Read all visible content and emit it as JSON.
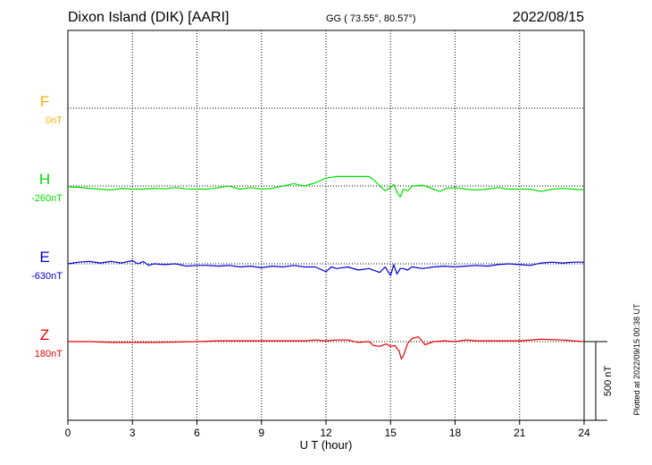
{
  "header": {
    "station": "Dixon Island (DIK)  [AARI]",
    "coords": "GG ( 73.55°,  80.57°)",
    "date": "2022/08/15"
  },
  "footer": {
    "plotted_note": "Plotted at 2022/09/15 00:38 UT",
    "scale_label": "500 nT"
  },
  "chart_data": {
    "type": "line",
    "title": "Dixon Island (DIK)  [AARI]",
    "xlabel": "U T (hour)",
    "xlim": [
      0,
      24
    ],
    "x_ticks": [
      "0",
      "3",
      "6",
      "9",
      "12",
      "15",
      "18",
      "21",
      "24"
    ],
    "x_tick_values": [
      0,
      3,
      6,
      9,
      12,
      15,
      18,
      21,
      24
    ],
    "scale_bar_nT": 500,
    "grid": true,
    "colors": {
      "F": "#ffb000",
      "H": "#00e000",
      "E": "#0000dd",
      "Z": "#ee0000"
    },
    "series": [
      {
        "name": "F",
        "baseline": "0nT",
        "values": []
      },
      {
        "name": "H",
        "baseline": "-260nT",
        "x": [
          0,
          0.5,
          1,
          1.5,
          2,
          2.5,
          3,
          3.5,
          4,
          4.5,
          5,
          5.5,
          6,
          6.5,
          7,
          7.5,
          8,
          8.5,
          9,
          9.5,
          10,
          10.5,
          11,
          11.5,
          12,
          12.5,
          13,
          13.5,
          14,
          14.25,
          14.5,
          14.75,
          15,
          15.15,
          15.3,
          15.45,
          15.6,
          15.8,
          16,
          16.5,
          17,
          17.3,
          17.6,
          18,
          18.5,
          19,
          19.5,
          20,
          20.5,
          21,
          21.5,
          22,
          22.5,
          23,
          23.5,
          24
        ],
        "values": [
          -5,
          -8,
          -15,
          -20,
          -25,
          -15,
          -20,
          -20,
          -15,
          -18,
          -10,
          -18,
          -20,
          -20,
          -10,
          0,
          -20,
          -10,
          -20,
          -15,
          0,
          15,
          0,
          20,
          50,
          60,
          60,
          60,
          60,
          35,
          0,
          -30,
          -10,
          10,
          -40,
          -70,
          -20,
          -30,
          0,
          5,
          -20,
          -35,
          -15,
          -10,
          -20,
          -25,
          -20,
          -10,
          -20,
          -20,
          -20,
          -35,
          -20,
          -15,
          -20,
          -25
        ]
      },
      {
        "name": "E",
        "baseline": "-630nT",
        "x": [
          0,
          0.5,
          1,
          1.5,
          2,
          2.5,
          3,
          3.25,
          3.5,
          3.75,
          4,
          4.5,
          5,
          5.5,
          6,
          6.5,
          7,
          7.5,
          8,
          8.5,
          9,
          9.5,
          10,
          10.5,
          11,
          11.5,
          12,
          12.25,
          12.5,
          13,
          13.5,
          14,
          14.5,
          14.75,
          15,
          15.15,
          15.3,
          15.45,
          15.6,
          15.8,
          16,
          16.5,
          17,
          17.5,
          18,
          18.5,
          19,
          19.5,
          20,
          20.5,
          21,
          21.5,
          22,
          22.5,
          23,
          23.5,
          24
        ],
        "values": [
          0,
          10,
          15,
          5,
          15,
          5,
          20,
          0,
          15,
          -10,
          0,
          -5,
          0,
          -15,
          -10,
          -10,
          -15,
          -10,
          -20,
          -15,
          -25,
          -15,
          -20,
          -10,
          -20,
          -20,
          -50,
          -20,
          -30,
          -20,
          -40,
          -30,
          -55,
          -20,
          -75,
          -5,
          -65,
          -30,
          -30,
          -40,
          -20,
          -30,
          -20,
          -15,
          -20,
          -15,
          -10,
          -15,
          -5,
          0,
          -5,
          -10,
          5,
          10,
          5,
          10,
          10
        ]
      },
      {
        "name": "Z",
        "baseline": "180nT",
        "x": [
          0,
          1,
          2,
          3,
          4,
          5,
          6,
          7,
          8,
          9,
          10,
          11,
          11.5,
          12,
          12.5,
          13,
          13.5,
          14,
          14.2,
          14.5,
          14.8,
          15,
          15.2,
          15.4,
          15.5,
          15.6,
          15.8,
          16,
          16.3,
          16.6,
          17,
          17.5,
          18,
          18.5,
          19,
          20,
          21,
          22,
          23,
          24
        ],
        "values": [
          0,
          0,
          -5,
          -5,
          -5,
          -3,
          0,
          5,
          5,
          5,
          5,
          5,
          10,
          5,
          10,
          10,
          -5,
          0,
          -25,
          -30,
          -15,
          -30,
          -25,
          -60,
          -110,
          -90,
          -10,
          20,
          30,
          -20,
          0,
          5,
          0,
          10,
          5,
          5,
          5,
          15,
          10,
          0
        ]
      }
    ]
  }
}
